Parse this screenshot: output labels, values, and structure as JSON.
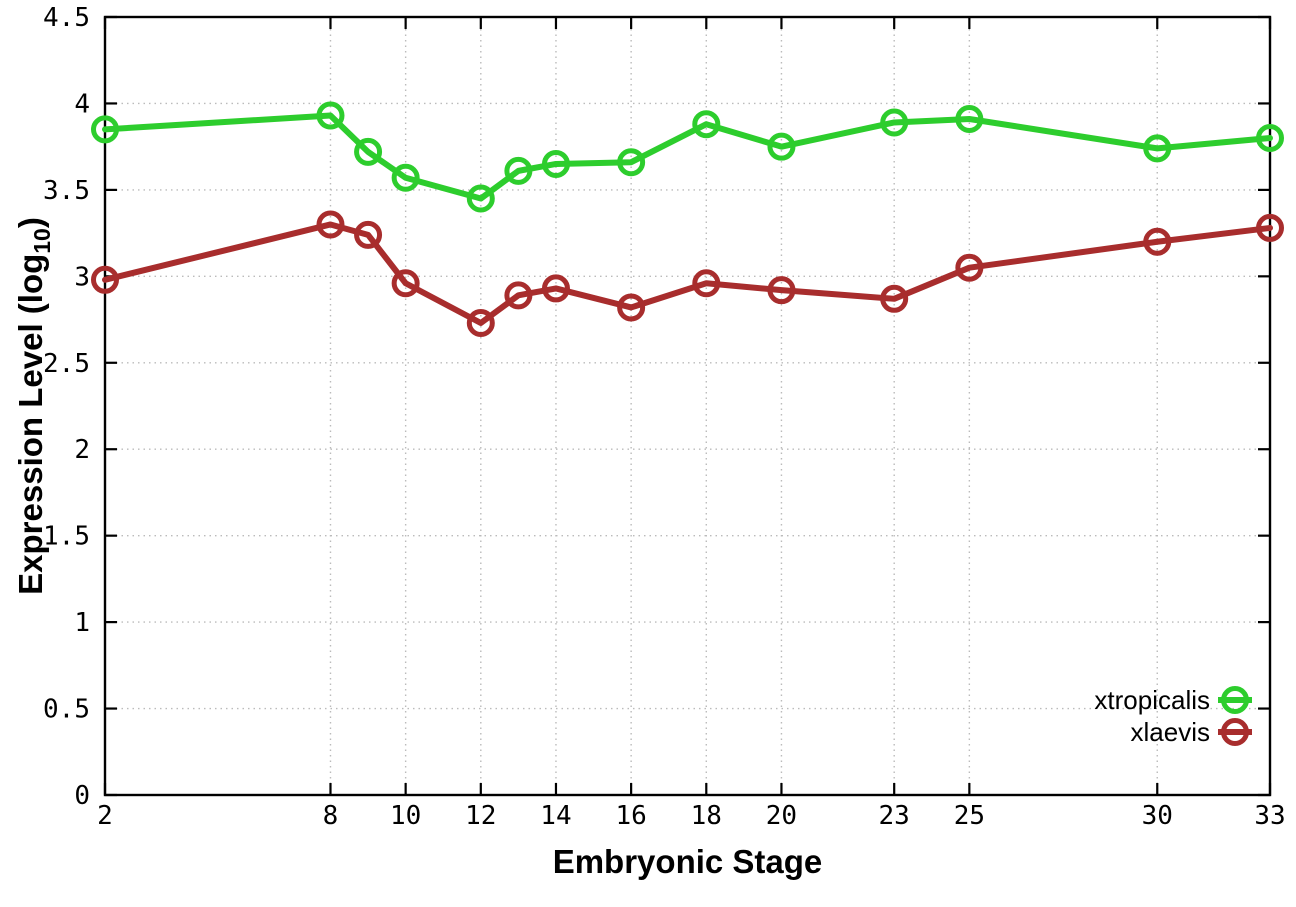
{
  "chart_data": {
    "type": "line",
    "title": "",
    "xlabel": "Embryonic Stage",
    "ylabel": {
      "text": "Expression Level (log",
      "subscript": "10",
      "suffix": ")"
    },
    "x": [
      2,
      8,
      9,
      10,
      12,
      13,
      14,
      16,
      18,
      20,
      23,
      25,
      30,
      33
    ],
    "series": [
      {
        "name": "xtropicalis",
        "color": "#2DCD2D",
        "values": [
          3.85,
          3.93,
          3.72,
          3.57,
          3.45,
          3.61,
          3.65,
          3.66,
          3.88,
          3.75,
          3.89,
          3.91,
          3.74,
          3.8
        ]
      },
      {
        "name": "xlaevis",
        "color": "#A82D2D",
        "values": [
          2.98,
          3.3,
          3.24,
          2.96,
          2.73,
          2.89,
          2.93,
          2.82,
          2.96,
          2.92,
          2.87,
          3.05,
          3.2,
          3.28
        ]
      }
    ],
    "xtick_labels": [
      "2",
      "8",
      "10",
      "12",
      "14",
      "16",
      "18",
      "20",
      "23",
      "25",
      "30",
      "33"
    ],
    "xtick_values": [
      2,
      8,
      10,
      12,
      14,
      16,
      18,
      20,
      23,
      25,
      30,
      33
    ],
    "ytick_labels": [
      "0",
      "0.5",
      "1",
      "1.5",
      "2",
      "2.5",
      "3",
      "3.5",
      "4",
      "4.5"
    ],
    "ytick_values": [
      0,
      0.5,
      1,
      1.5,
      2,
      2.5,
      3,
      3.5,
      4,
      4.5
    ],
    "xlim": [
      2,
      33
    ],
    "ylim": [
      0,
      4.5
    ],
    "grid": true,
    "legend_position": "bottom-right",
    "colors": {
      "axis": "#000000",
      "grid": "#bbbbbb",
      "tick_label": "#000000",
      "axis_title": "#000000",
      "legend_text": "#000000",
      "background": "#ffffff"
    }
  }
}
